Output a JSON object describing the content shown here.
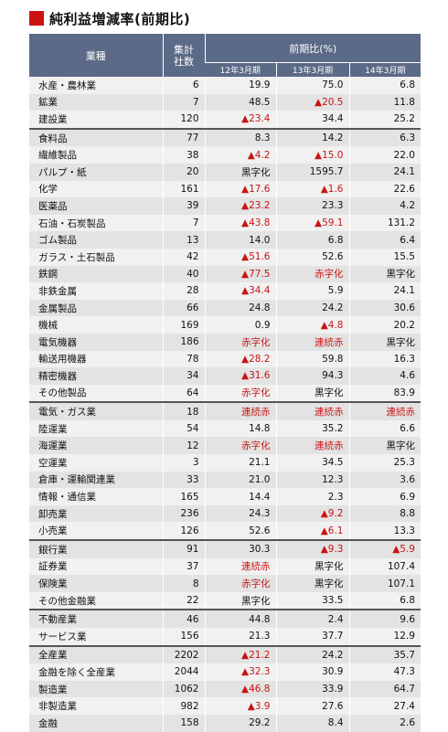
{
  "title": "純利益増減率(前期比)",
  "header": {
    "industry": "業種",
    "count": "集計\n社数",
    "change": "前期比(%)",
    "periods": [
      "12年3月期",
      "13年3月期",
      "14年3月期"
    ]
  },
  "rows": [
    {
      "name": "水産・農林業",
      "n": "6",
      "v": [
        "19.9",
        "75.0",
        "6.8"
      ],
      "g": false
    },
    {
      "name": "鉱業",
      "n": "7",
      "v": [
        "48.5",
        "▲20.5",
        "11.8"
      ],
      "g": false
    },
    {
      "name": "建設業",
      "n": "120",
      "v": [
        "▲23.4",
        "34.4",
        "25.2"
      ],
      "g": false
    },
    {
      "name": "食料品",
      "n": "77",
      "v": [
        "8.3",
        "14.2",
        "6.3"
      ],
      "g": true
    },
    {
      "name": "繊維製品",
      "n": "38",
      "v": [
        "▲4.2",
        "▲15.0",
        "22.0"
      ],
      "g": false
    },
    {
      "name": "パルプ・紙",
      "n": "20",
      "v": [
        "黒字化",
        "1595.7",
        "24.1"
      ],
      "g": false
    },
    {
      "name": "化学",
      "n": "161",
      "v": [
        "▲17.6",
        "▲1.6",
        "22.6"
      ],
      "g": false
    },
    {
      "name": "医薬品",
      "n": "39",
      "v": [
        "▲23.2",
        "23.3",
        "4.2"
      ],
      "g": false
    },
    {
      "name": "石油・石炭製品",
      "n": "7",
      "v": [
        "▲43.8",
        "▲59.1",
        "131.2"
      ],
      "g": false
    },
    {
      "name": "ゴム製品",
      "n": "13",
      "v": [
        "14.0",
        "6.8",
        "6.4"
      ],
      "g": false
    },
    {
      "name": "ガラス・土石製品",
      "n": "42",
      "v": [
        "▲51.6",
        "52.6",
        "15.5"
      ],
      "g": false
    },
    {
      "name": "鉄鋼",
      "n": "40",
      "v": [
        "▲77.5",
        "赤字化",
        "黒字化"
      ],
      "g": false
    },
    {
      "name": "非鉄金属",
      "n": "28",
      "v": [
        "▲34.4",
        "5.9",
        "24.1"
      ],
      "g": false
    },
    {
      "name": "金属製品",
      "n": "66",
      "v": [
        "24.8",
        "24.2",
        "30.6"
      ],
      "g": false
    },
    {
      "name": "機械",
      "n": "169",
      "v": [
        "0.9",
        "▲4.8",
        "20.2"
      ],
      "g": false
    },
    {
      "name": "電気機器",
      "n": "186",
      "v": [
        "赤字化",
        "連続赤",
        "黒字化"
      ],
      "g": false
    },
    {
      "name": "輸送用機器",
      "n": "78",
      "v": [
        "▲28.2",
        "59.8",
        "16.3"
      ],
      "g": false
    },
    {
      "name": "精密機器",
      "n": "34",
      "v": [
        "▲31.6",
        "94.3",
        "4.6"
      ],
      "g": false
    },
    {
      "name": "その他製品",
      "n": "64",
      "v": [
        "赤字化",
        "黒字化",
        "83.9"
      ],
      "g": false
    },
    {
      "name": "電気・ガス業",
      "n": "18",
      "v": [
        "連続赤",
        "連続赤",
        "連続赤"
      ],
      "g": true
    },
    {
      "name": "陸運業",
      "n": "54",
      "v": [
        "14.8",
        "35.2",
        "6.6"
      ],
      "g": false
    },
    {
      "name": "海運業",
      "n": "12",
      "v": [
        "赤字化",
        "連続赤",
        "黒字化"
      ],
      "g": false
    },
    {
      "name": "空運業",
      "n": "3",
      "v": [
        "21.1",
        "34.5",
        "25.3"
      ],
      "g": false
    },
    {
      "name": "倉庫・運輸関連業",
      "n": "33",
      "v": [
        "21.0",
        "12.3",
        "3.6"
      ],
      "g": false
    },
    {
      "name": "情報・通信業",
      "n": "165",
      "v": [
        "14.4",
        "2.3",
        "6.9"
      ],
      "g": false
    },
    {
      "name": "卸売業",
      "n": "236",
      "v": [
        "24.3",
        "▲9.2",
        "8.8"
      ],
      "g": false
    },
    {
      "name": "小売業",
      "n": "126",
      "v": [
        "52.6",
        "▲6.1",
        "13.3"
      ],
      "g": false
    },
    {
      "name": "銀行業",
      "n": "91",
      "v": [
        "30.3",
        "▲9.3",
        "▲5.9"
      ],
      "g": true
    },
    {
      "name": "証券業",
      "n": "37",
      "v": [
        "連続赤",
        "黒字化",
        "107.4"
      ],
      "g": false
    },
    {
      "name": "保険業",
      "n": "8",
      "v": [
        "赤字化",
        "黒字化",
        "107.1"
      ],
      "g": false
    },
    {
      "name": "その他金融業",
      "n": "22",
      "v": [
        "黒字化",
        "33.5",
        "6.8"
      ],
      "g": false
    },
    {
      "name": "不動産業",
      "n": "46",
      "v": [
        "44.8",
        "2.4",
        "9.6"
      ],
      "g": true
    },
    {
      "name": "サービス業",
      "n": "156",
      "v": [
        "21.3",
        "37.7",
        "12.9"
      ],
      "g": false
    },
    {
      "name": "全産業",
      "n": "2202",
      "v": [
        "▲21.2",
        "24.2",
        "35.7"
      ],
      "g": true
    },
    {
      "name": "金融を除く全産業",
      "n": "2044",
      "v": [
        "▲32.3",
        "30.9",
        "47.3"
      ],
      "g": false
    },
    {
      "name": "製造業",
      "n": "1062",
      "v": [
        "▲46.8",
        "33.9",
        "64.7"
      ],
      "g": false
    },
    {
      "name": "非製造業",
      "n": "982",
      "v": [
        "▲3.9",
        "27.6",
        "27.4"
      ],
      "g": false
    },
    {
      "name": "金融",
      "n": "158",
      "v": [
        "29.2",
        "8.4",
        "2.6"
      ],
      "g": false
    }
  ],
  "colors": {
    "header": "#5b6a86",
    "negative": "#c81414",
    "accent": "#cc1111"
  }
}
